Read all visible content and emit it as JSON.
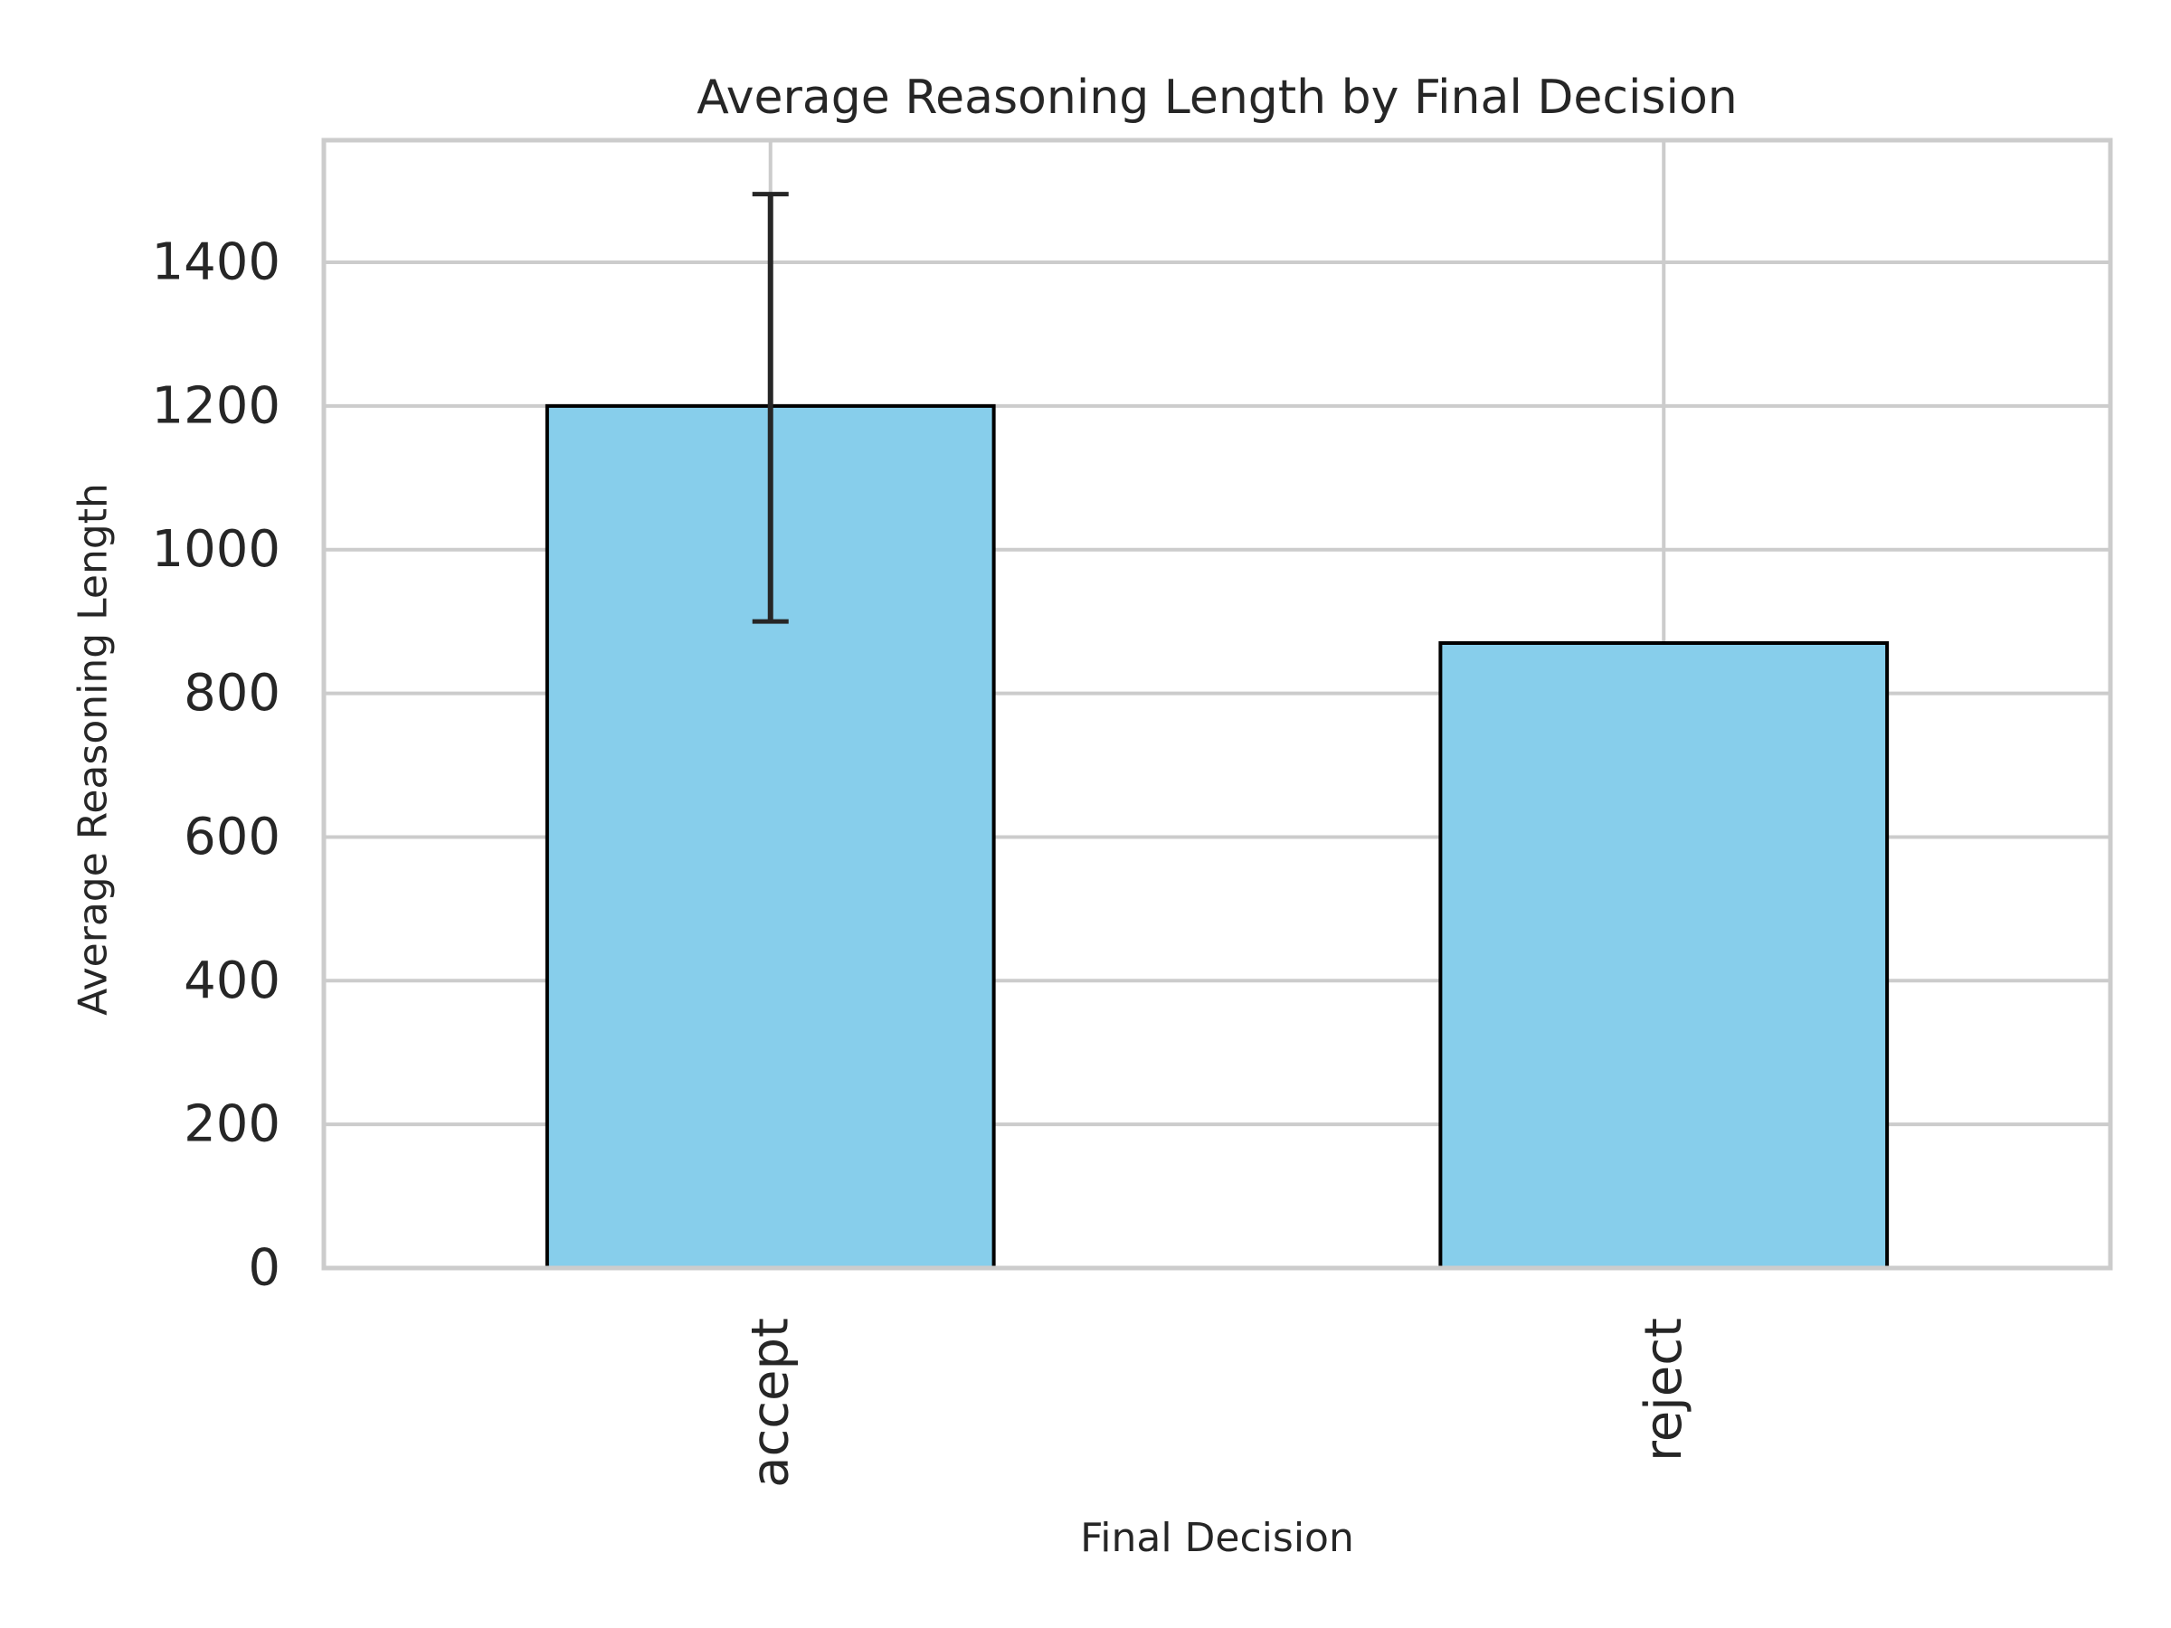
{
  "chart_data": {
    "type": "bar",
    "title": "Average Reasoning Length by Final Decision",
    "xlabel": "Final Decision",
    "ylabel": "Average Reasoning Length",
    "categories": [
      "accept",
      "reject"
    ],
    "values": [
      1200,
      870
    ],
    "error_bars": [
      {
        "low": 900,
        "high": 1495
      },
      null
    ],
    "ylim": [
      0,
      1570
    ],
    "yticks": [
      0,
      200,
      400,
      600,
      800,
      1000,
      1200,
      1400
    ],
    "grid": true,
    "legend": "none",
    "colors": {
      "bar_fill": "#87ceeb",
      "bar_edge": "#000000",
      "grid": "#cccccc",
      "spine": "#cccccc",
      "error_bar": "#262626",
      "text": "#262626"
    }
  }
}
